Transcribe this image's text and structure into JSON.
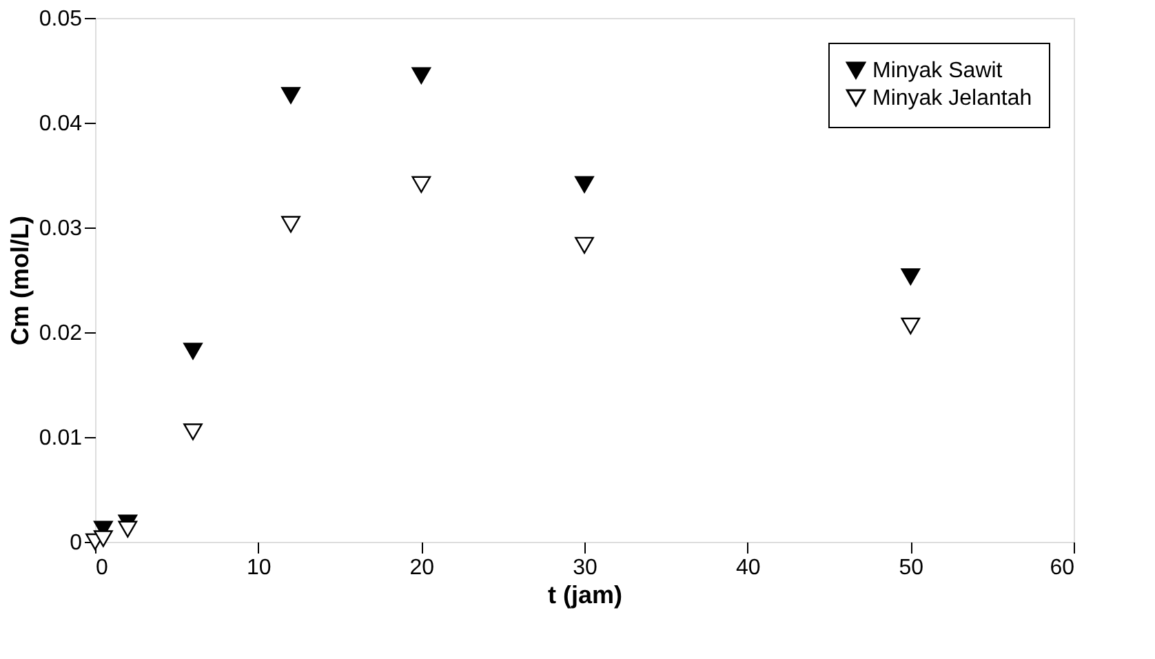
{
  "chart_data": {
    "type": "scatter",
    "xlabel": "t (jam)",
    "ylabel": "Cm (mol/L)",
    "x": [
      0,
      0.5,
      2,
      6,
      12,
      20,
      30,
      50
    ],
    "series": [
      {
        "name": "Minyak Sawit",
        "color": "#000000",
        "values": [
          null,
          0.0012,
          0.0018,
          0.0182,
          0.0426,
          0.0445,
          0.0341,
          0.0253
        ]
      },
      {
        "name": "Minyak Jelantah",
        "color": "#ffffff",
        "values": [
          0.0,
          0.0003,
          0.0012,
          0.0105,
          0.0303,
          0.0341,
          0.0283,
          0.0206
        ]
      }
    ],
    "xlim": [
      0,
      60
    ],
    "xticks": [
      0,
      10,
      20,
      30,
      40,
      50,
      60
    ],
    "ylim": [
      0,
      0.05
    ],
    "yticks": [
      0,
      0.01,
      0.02,
      0.03,
      0.04,
      0.05
    ],
    "grid": false,
    "legend": "top right",
    "marker": "triangle"
  }
}
